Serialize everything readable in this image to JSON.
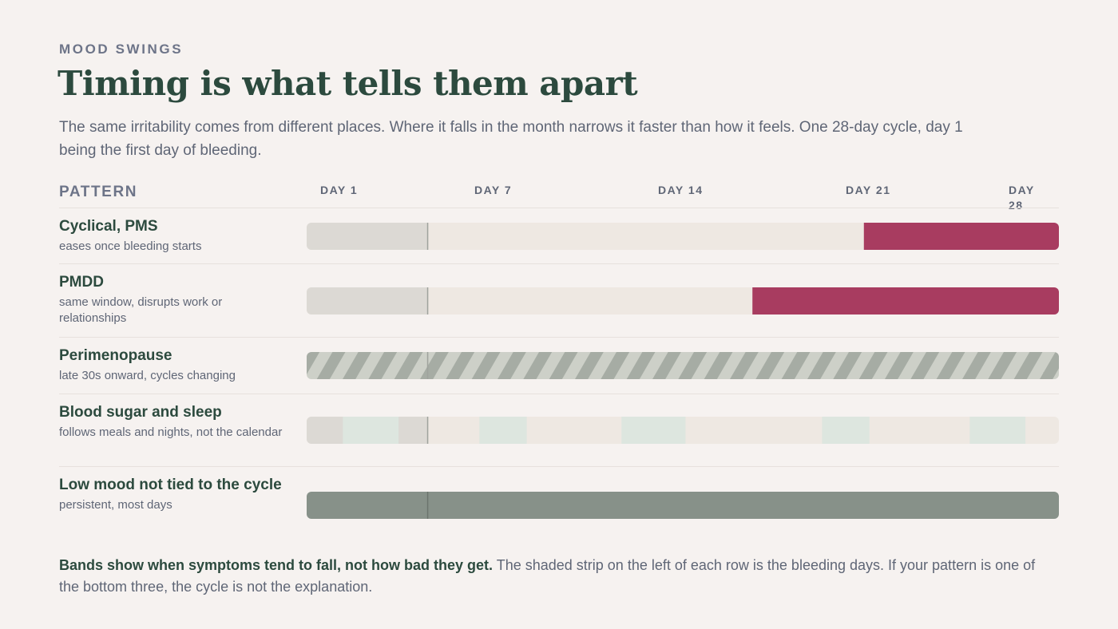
{
  "header": {
    "kicker": "MOOD SWINGS",
    "title": "Timing is what tells them apart",
    "subtitle": "The same irritability comes from different places. Where it falls in the month narrows it faster than how it feels. One 28-day cycle, day 1 being the first day of bleeding."
  },
  "colors": {
    "background": "#f6f2f0",
    "title": "#2c4a3e",
    "empty_track": "#eee8e2",
    "bleeding_strip": "#dcd9d4",
    "symptom_crimson": "#a83c60",
    "blood_sugar_tint": "#dde6df",
    "hatch_light": "#cdd0c8",
    "hatch_dark": "#a6aca4",
    "low_mood": "#879189"
  },
  "chart_data": {
    "type": "timeline",
    "x_axis": {
      "label": "PATTERN",
      "domain": [
        1,
        28
      ],
      "ticks": [
        {
          "day": 1,
          "label": "DAY 1"
        },
        {
          "day": 7,
          "label": "DAY 7"
        },
        {
          "day": 14,
          "label": "DAY 14"
        },
        {
          "day": 21,
          "label": "DAY 21"
        },
        {
          "day": 28,
          "label": "DAY 28"
        }
      ]
    },
    "bleeding_days": [
      1,
      5
    ],
    "rows": [
      {
        "name": "Cyclical, PMS",
        "description": "eases once bleeding starts",
        "style": "solid-crimson",
        "bands": [
          [
            21,
            28
          ]
        ]
      },
      {
        "name": "PMDD",
        "description": "same window, disrupts work or relationships",
        "style": "solid-crimson",
        "bands": [
          [
            17,
            28
          ]
        ]
      },
      {
        "name": "Perimenopause",
        "description": "late 30s onward, cycles changing",
        "style": "hatched",
        "bands": [
          [
            1,
            28
          ]
        ]
      },
      {
        "name": "Blood sugar and sleep",
        "description": "follows meals and nights, not the calendar",
        "style": "scattered-tint",
        "bands": [
          [
            2.3,
            4.3
          ],
          [
            7.2,
            8.9
          ],
          [
            12.3,
            14.6
          ],
          [
            19.5,
            21.2
          ],
          [
            24.8,
            26.8
          ]
        ]
      },
      {
        "name": "Low mood not tied to the cycle",
        "description": "persistent, most days",
        "style": "solid-grey",
        "bands": [
          [
            1,
            28
          ]
        ]
      }
    ]
  },
  "footer": {
    "bold": "Bands show when symptoms tend to fall, not how bad they get.",
    "text": " The shaded strip on the left of each row is the bleeding days. If your pattern is one of the bottom three, the cycle is not the explanation."
  }
}
